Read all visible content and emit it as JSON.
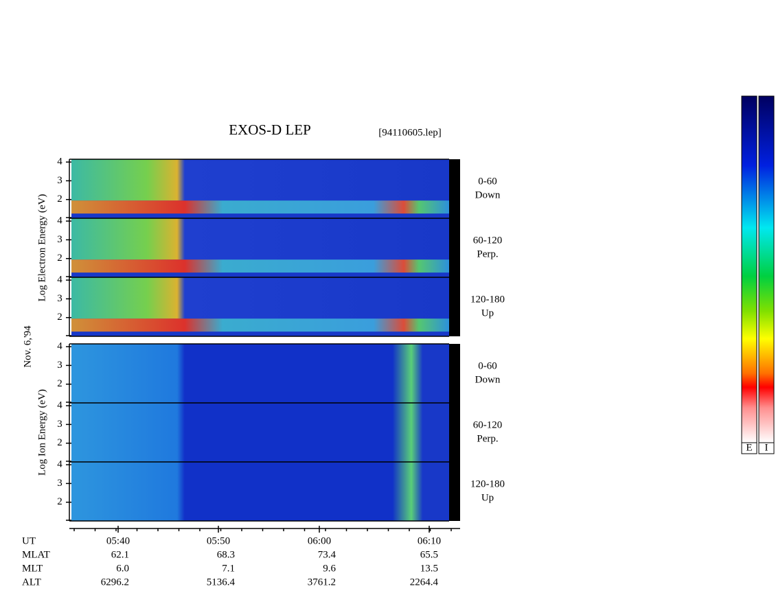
{
  "chart_data": {
    "type": "spectrogram",
    "title": "EXOS-D LEP",
    "subtitle": "[94110605.lep]",
    "date": "Nov. 6,'94",
    "groups": [
      {
        "name": "Electron",
        "ylabel": "Log Electron Energy (eV)"
      },
      {
        "name": "Ion",
        "ylabel": "Log Ion Energy (eV)"
      }
    ],
    "panels": [
      {
        "angle": "0-60",
        "direction": "Down"
      },
      {
        "angle": "60-120",
        "direction": "Perp."
      },
      {
        "angle": "120-180",
        "direction": "Up"
      }
    ],
    "ylim": [
      1,
      4.15
    ],
    "yticks": [
      2,
      3,
      4
    ],
    "xticks": [
      "05:40",
      "05:50",
      "06:00",
      "06:10"
    ],
    "ephemeris": {
      "labels": [
        "UT",
        "MLAT",
        "MLT",
        "ALT"
      ],
      "rows": [
        [
          "62.1",
          "68.3",
          "73.4",
          "65.5"
        ],
        [
          "6.0",
          "7.1",
          "9.6",
          "13.5"
        ],
        [
          "6296.2",
          "5136.4",
          "3761.2",
          "2264.4"
        ]
      ]
    },
    "colorbar_labels": [
      "E",
      "I"
    ]
  }
}
